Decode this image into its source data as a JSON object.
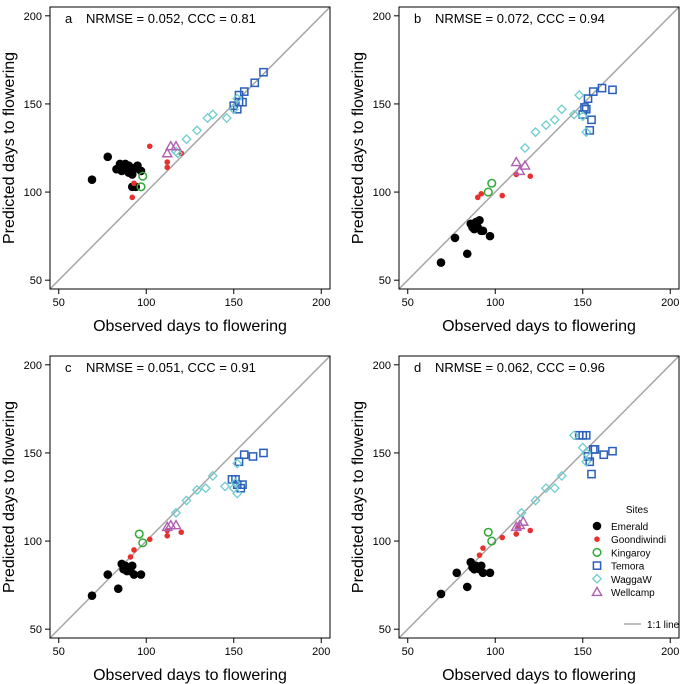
{
  "colors": {
    "Emerald": "#000000",
    "Goondiwindi": "#e8312f",
    "Kingaroy": "#2eaa35",
    "Temora": "#2a5fbd",
    "WaggaW": "#6fcdd0",
    "Wellcamp": "#b05fb3",
    "line": "#a6a6a6"
  },
  "legend": {
    "title": "Sites",
    "entries": [
      "Emerald",
      "Goondiwindi",
      "Kingaroy",
      "Temora",
      "WaggaW",
      "Wellcamp"
    ],
    "line_label": "1:1 line"
  },
  "chart_data": [
    {
      "type": "scatter",
      "panel": "a",
      "stats_text": "NRMSE = 0.052,  CCC = 0.81",
      "xlabel": "Observed days to flowering",
      "ylabel": "Predicted days to flowering",
      "xlim": [
        45,
        205
      ],
      "ylim": [
        45,
        205
      ],
      "xticks": [
        50,
        100,
        150,
        200
      ],
      "yticks": [
        50,
        100,
        150,
        200
      ],
      "series": [
        {
          "name": "Emerald",
          "points": [
            [
              69,
              107
            ],
            [
              78,
              120
            ],
            [
              83,
              113
            ],
            [
              85,
              116
            ],
            [
              86,
              112
            ],
            [
              87,
              114
            ],
            [
              88,
              116
            ],
            [
              89,
              113
            ],
            [
              90,
              115
            ],
            [
              90,
              111
            ],
            [
              91,
              114
            ],
            [
              92,
              110
            ],
            [
              93,
              113
            ],
            [
              95,
              115
            ],
            [
              97,
              112
            ],
            [
              92,
              103
            ],
            [
              94,
              103
            ],
            [
              91,
              114
            ]
          ]
        },
        {
          "name": "Goondiwindi",
          "points": [
            [
              92,
              97
            ],
            [
              93,
              105
            ],
            [
              102,
              126
            ],
            [
              112,
              114
            ],
            [
              112,
              117
            ],
            [
              120,
              122
            ]
          ]
        },
        {
          "name": "Kingaroy",
          "points": [
            [
              97,
              103
            ],
            [
              98,
              109
            ]
          ]
        },
        {
          "name": "Temora",
          "points": [
            [
              150,
              149
            ],
            [
              152,
              147
            ],
            [
              153,
              151
            ],
            [
              153,
              155
            ],
            [
              155,
              151
            ],
            [
              156,
              157
            ],
            [
              162,
              162
            ],
            [
              167,
              168
            ]
          ]
        },
        {
          "name": "WaggaW",
          "points": [
            [
              117,
              123
            ],
            [
              118,
              122
            ],
            [
              123,
              130
            ],
            [
              129,
              135
            ],
            [
              135,
              142
            ],
            [
              138,
              144
            ],
            [
              146,
              142
            ],
            [
              150,
              147
            ],
            [
              152,
              153
            ]
          ]
        },
        {
          "name": "Wellcamp",
          "points": [
            [
              112,
              122
            ],
            [
              114,
              126
            ],
            [
              117,
              126
            ]
          ]
        }
      ]
    },
    {
      "type": "scatter",
      "panel": "b",
      "stats_text": "NRMSE = 0.072,  CCC = 0.94",
      "xlabel": "Observed days to flowering",
      "ylabel": "Predicted days to flowering",
      "xlim": [
        45,
        205
      ],
      "ylim": [
        45,
        205
      ],
      "xticks": [
        50,
        100,
        150,
        200
      ],
      "yticks": [
        50,
        100,
        150,
        200
      ],
      "series": [
        {
          "name": "Emerald",
          "points": [
            [
              69,
              60
            ],
            [
              77,
              74
            ],
            [
              84,
              65
            ],
            [
              86,
              82
            ],
            [
              87,
              80
            ],
            [
              89,
              83
            ],
            [
              90,
              80
            ],
            [
              91,
              84
            ],
            [
              92,
              78
            ],
            [
              93,
              78
            ],
            [
              97,
              75
            ],
            [
              88,
              79
            ]
          ]
        },
        {
          "name": "Goondiwindi",
          "points": [
            [
              90,
              97
            ],
            [
              92,
              99
            ],
            [
              104,
              98
            ],
            [
              112,
              110
            ],
            [
              120,
              109
            ]
          ]
        },
        {
          "name": "Kingaroy",
          "points": [
            [
              96,
              100
            ],
            [
              98,
              105
            ]
          ]
        },
        {
          "name": "Temora",
          "points": [
            [
              150,
              144
            ],
            [
              151,
              148
            ],
            [
              152,
              147
            ],
            [
              153,
              153
            ],
            [
              154,
              135
            ],
            [
              155,
              141
            ],
            [
              156,
              157
            ],
            [
              161,
              159
            ],
            [
              167,
              158
            ]
          ]
        },
        {
          "name": "WaggaW",
          "points": [
            [
              117,
              125
            ],
            [
              123,
              134
            ],
            [
              129,
              138
            ],
            [
              134,
              141
            ],
            [
              138,
              147
            ],
            [
              145,
              144
            ],
            [
              148,
              155
            ],
            [
              150,
              143
            ],
            [
              152,
              134
            ]
          ]
        },
        {
          "name": "Wellcamp",
          "points": [
            [
              112,
              117
            ],
            [
              114,
              112
            ],
            [
              117,
              115
            ]
          ]
        }
      ]
    },
    {
      "type": "scatter",
      "panel": "c",
      "stats_text": "NRMSE = 0.051,  CCC = 0.91",
      "xlabel": "Observed days to flowering",
      "ylabel": "Predicted days to flowering",
      "xlim": [
        45,
        205
      ],
      "ylim": [
        45,
        205
      ],
      "xticks": [
        50,
        100,
        150,
        200
      ],
      "yticks": [
        50,
        100,
        150,
        200
      ],
      "series": [
        {
          "name": "Emerald",
          "points": [
            [
              69,
              69
            ],
            [
              78,
              81
            ],
            [
              84,
              73
            ],
            [
              86,
              87
            ],
            [
              87,
              84
            ],
            [
              88,
              86
            ],
            [
              89,
              83
            ],
            [
              90,
              85
            ],
            [
              91,
              83
            ],
            [
              92,
              86
            ],
            [
              93,
              81
            ],
            [
              97,
              81
            ]
          ]
        },
        {
          "name": "Goondiwindi",
          "points": [
            [
              91,
              91
            ],
            [
              93,
              95
            ],
            [
              102,
              101
            ],
            [
              112,
              103
            ],
            [
              112,
              106
            ],
            [
              120,
              105
            ]
          ]
        },
        {
          "name": "Kingaroy",
          "points": [
            [
              96,
              104
            ],
            [
              98,
              99
            ]
          ]
        },
        {
          "name": "Temora",
          "points": [
            [
              149,
              135
            ],
            [
              151,
              135
            ],
            [
              152,
              132
            ],
            [
              153,
              145
            ],
            [
              154,
              130
            ],
            [
              155,
              132
            ],
            [
              156,
              149
            ],
            [
              161,
              148
            ],
            [
              167,
              150
            ]
          ]
        },
        {
          "name": "WaggaW",
          "points": [
            [
              117,
              116
            ],
            [
              123,
              123
            ],
            [
              129,
              129
            ],
            [
              134,
              130
            ],
            [
              138,
              137
            ],
            [
              145,
              131
            ],
            [
              150,
              130
            ],
            [
              151,
              133
            ],
            [
              152,
              127
            ],
            [
              152,
              144
            ]
          ]
        },
        {
          "name": "Wellcamp",
          "points": [
            [
              112,
              108
            ],
            [
              114,
              109
            ],
            [
              117,
              109
            ]
          ]
        }
      ]
    },
    {
      "type": "scatter",
      "panel": "d",
      "stats_text": "NRMSE = 0.062,  CCC = 0.96",
      "xlabel": "Observed days to flowering",
      "ylabel": "Predicted days to flowering",
      "xlim": [
        45,
        205
      ],
      "ylim": [
        45,
        205
      ],
      "xticks": [
        50,
        100,
        150,
        200
      ],
      "yticks": [
        50,
        100,
        150,
        200
      ],
      "series": [
        {
          "name": "Emerald",
          "points": [
            [
              69,
              70
            ],
            [
              78,
              82
            ],
            [
              84,
              74
            ],
            [
              86,
              88
            ],
            [
              87,
              85
            ],
            [
              88,
              84
            ],
            [
              89,
              86
            ],
            [
              90,
              85
            ],
            [
              91,
              84
            ],
            [
              92,
              86
            ],
            [
              93,
              82
            ],
            [
              97,
              82
            ]
          ]
        },
        {
          "name": "Goondiwindi",
          "points": [
            [
              91,
              92
            ],
            [
              93,
              96
            ],
            [
              104,
              102
            ],
            [
              112,
              104
            ],
            [
              113,
              108
            ],
            [
              120,
              106
            ]
          ]
        },
        {
          "name": "Kingaroy",
          "points": [
            [
              96,
              105
            ],
            [
              98,
              100
            ]
          ]
        },
        {
          "name": "Temora",
          "points": [
            [
              148,
              160
            ],
            [
              150,
              160
            ],
            [
              152,
              160
            ],
            [
              153,
              148
            ],
            [
              154,
              145
            ],
            [
              155,
              138
            ],
            [
              156,
              152
            ],
            [
              157,
              152
            ],
            [
              162,
              149
            ],
            [
              167,
              151
            ]
          ]
        },
        {
          "name": "WaggaW",
          "points": [
            [
              115,
              116
            ],
            [
              123,
              123
            ],
            [
              129,
              130
            ],
            [
              134,
              130
            ],
            [
              138,
              137
            ],
            [
              145,
              160
            ],
            [
              150,
              153
            ],
            [
              152,
              150
            ],
            [
              152,
              145
            ]
          ]
        },
        {
          "name": "Wellcamp",
          "points": [
            [
              112,
              108
            ],
            [
              114,
              109
            ],
            [
              116,
              111
            ]
          ]
        }
      ]
    }
  ]
}
